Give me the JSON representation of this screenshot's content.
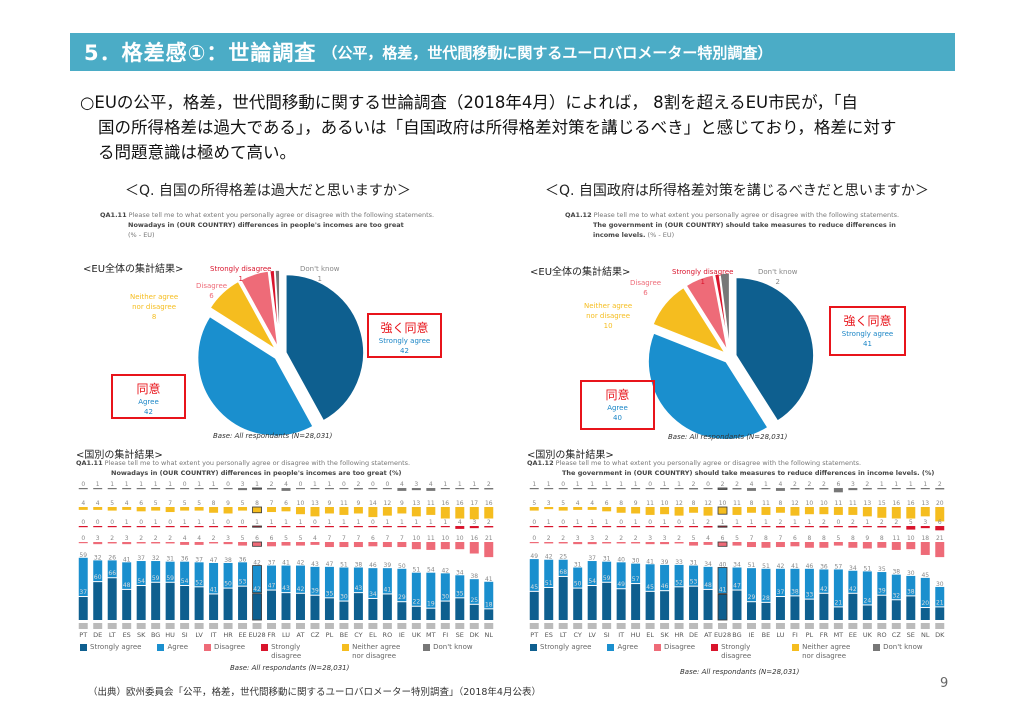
{
  "header": {
    "title": "5．格差感①：世論調査",
    "subtitle": "（公平，格差，世代間移動に関するユーロバロメーター特別調査）"
  },
  "lead": {
    "line1": "○EUの公平，格差，世代間移動に関する世論調査（2018年4月）によれば， 8割を超えるEU市民が，「自",
    "line2": "国の所得格差は過大である」，あるいは「自国政府は所得格差対策を講じるべき」と感じており，格差に対す",
    "line3": "る問題意識は極めて高い。"
  },
  "colors": {
    "strongly_agree": "#0e5f8f",
    "agree": "#1a8fce",
    "disagree": "#ee6b78",
    "strongly_disagree": "#d9142c",
    "neither": "#f5bd1f",
    "dont_know": "#777777"
  },
  "legend": [
    "Strongly agree",
    "Agree",
    "Disagree",
    "Strongly disagree",
    "Neither agree nor disagree",
    "Don't know"
  ],
  "left": {
    "question": "＜Q. 自国の所得格差は過大だと思いますか＞",
    "qa_code": "QA1.11",
    "qa_text": "Please tell me to what extent you personally agree or disagree with the following statements.",
    "qa_statement": "Nowadays in (OUR COUNTRY) differences in people's incomes are too great",
    "qa_unit": "(% - EU)",
    "eu_label": "<EU全体の集計結果>",
    "country_label": "<国別の集計結果>",
    "bar_statement": "Nowadays in (OUR COUNTRY) differences in people's incomes are too great (%)",
    "jp_strongly": "強く同意",
    "jp_agree": "同意",
    "base": "Base: All respondants (N=28,031)"
  },
  "right": {
    "question": "＜Q. 自国政府は所得格差対策を講じるべきだと思いますか＞",
    "qa_code": "QA1.12",
    "qa_text": "Please tell me to what extent you personally agree or disagree with the following statements.",
    "qa_statement": "The government in (OUR COUNTRY) should take measures to reduce differences in income levels.",
    "qa_unit": "(% - EU)",
    "eu_label": "<EU全体の集計結果>",
    "country_label": "<国別の集計結果>",
    "bar_statement": "The government in (OUR COUNTRY) should take measures to reduce differences in income levels. (%)",
    "jp_strongly": "強く同意",
    "jp_agree": "同意",
    "base": "Base: All respondants (N=28,031)"
  },
  "footer": "（出典）欧州委員会「公平，格差，世代間移動に関するユーロバロメーター特別調査」（2018年4月公表）",
  "page_number": "9",
  "chart_data": [
    {
      "type": "pie",
      "title": "QA1.11 EU total",
      "labels": [
        "Strongly agree",
        "Agree",
        "Neither agree nor disagree",
        "Disagree",
        "Strongly disagree",
        "Don't know"
      ],
      "values": [
        42,
        42,
        8,
        6,
        1,
        1
      ]
    },
    {
      "type": "pie",
      "title": "QA1.12 EU total",
      "labels": [
        "Strongly agree",
        "Agree",
        "Neither agree nor disagree",
        "Disagree",
        "Strongly disagree",
        "Don't know"
      ],
      "values": [
        41,
        40,
        10,
        6,
        1,
        2
      ]
    },
    {
      "type": "bar",
      "title": "QA1.11 by country",
      "categories": [
        "PT",
        "DE",
        "LT",
        "ES",
        "SK",
        "BG",
        "HU",
        "SI",
        "LV",
        "IT",
        "HR",
        "EE",
        "EU28",
        "FR",
        "LU",
        "AT",
        "CZ",
        "PL",
        "BE",
        "CY",
        "EL",
        "RO",
        "IE",
        "UK",
        "MT",
        "FI",
        "SE",
        "DK",
        "NL"
      ],
      "series": [
        {
          "name": "Strongly agree",
          "values": [
            37,
            60,
            66,
            48,
            54,
            59,
            59,
            54,
            52,
            41,
            50,
            53,
            42,
            47,
            43,
            42,
            39,
            35,
            30,
            43,
            34,
            41,
            29,
            22,
            19,
            30,
            35,
            25,
            18
          ]
        },
        {
          "name": "Agree",
          "values": [
            59,
            32,
            26,
            41,
            37,
            32,
            31,
            36,
            37,
            47,
            38,
            36,
            42,
            37,
            41,
            42,
            43,
            47,
            51,
            38,
            46,
            39,
            50,
            51,
            54,
            42,
            34,
            38,
            41
          ]
        },
        {
          "name": "Disagree",
          "values": [
            0,
            3,
            2,
            3,
            2,
            2,
            2,
            4,
            4,
            2,
            3,
            5,
            6,
            6,
            5,
            5,
            4,
            7,
            7,
            7,
            6,
            7,
            7,
            10,
            11,
            10,
            10,
            16,
            21
          ]
        },
        {
          "name": "Strongly disagree",
          "values": [
            0,
            0,
            0,
            1,
            0,
            1,
            0,
            1,
            1,
            1,
            0,
            0,
            1,
            1,
            1,
            1,
            0,
            1,
            1,
            1,
            0,
            1,
            1,
            1,
            1,
            1,
            4,
            3,
            2
          ]
        },
        {
          "name": "Neither agree nor disagree",
          "values": [
            4,
            4,
            5,
            4,
            6,
            5,
            7,
            5,
            5,
            8,
            9,
            5,
            8,
            7,
            6,
            10,
            13,
            9,
            11,
            9,
            14,
            12,
            9,
            13,
            11,
            16,
            16,
            17,
            16
          ]
        },
        {
          "name": "Don't know",
          "values": [
            0,
            1,
            1,
            1,
            1,
            1,
            1,
            0,
            1,
            1,
            0,
            3,
            1,
            2,
            4,
            0,
            1,
            1,
            0,
            2,
            0,
            0,
            4,
            3,
            4,
            1,
            1,
            1,
            2
          ]
        }
      ]
    },
    {
      "type": "bar",
      "title": "QA1.12 by country",
      "categories": [
        "PT",
        "ES",
        "LT",
        "CY",
        "LV",
        "SI",
        "IT",
        "HU",
        "EL",
        "SK",
        "HR",
        "DE",
        "AT",
        "EU28",
        "BG",
        "IE",
        "BE",
        "LU",
        "FI",
        "PL",
        "FR",
        "MT",
        "EE",
        "UK",
        "RO",
        "CZ",
        "SE",
        "NL",
        "DK"
      ],
      "series": [
        {
          "name": "Strongly agree",
          "values": [
            45,
            51,
            68,
            50,
            54,
            59,
            49,
            57,
            45,
            46,
            52,
            53,
            48,
            41,
            47,
            29,
            28,
            37,
            38,
            33,
            42,
            21,
            42,
            24,
            39,
            32,
            38,
            20,
            21
          ]
        },
        {
          "name": "Agree",
          "values": [
            49,
            42,
            25,
            31,
            37,
            31,
            40,
            30,
            41,
            39,
            33,
            31,
            34,
            40,
            34,
            51,
            51,
            42,
            41,
            46,
            36,
            57,
            34,
            51,
            35,
            38,
            30,
            45,
            30
          ]
        },
        {
          "name": "Disagree",
          "values": [
            0,
            2,
            2,
            3,
            3,
            2,
            2,
            2,
            3,
            3,
            2,
            5,
            4,
            6,
            5,
            7,
            8,
            7,
            6,
            8,
            8,
            5,
            8,
            9,
            8,
            11,
            10,
            18,
            21
          ]
        },
        {
          "name": "Strongly disagree",
          "values": [
            0,
            1,
            0,
            1,
            1,
            1,
            0,
            1,
            0,
            1,
            0,
            1,
            2,
            1,
            1,
            1,
            1,
            2,
            1,
            1,
            2,
            0,
            2,
            1,
            2,
            2,
            5,
            3,
            6
          ]
        },
        {
          "name": "Neither agree nor disagree",
          "values": [
            5,
            3,
            5,
            4,
            4,
            6,
            8,
            9,
            11,
            10,
            12,
            8,
            12,
            10,
            11,
            8,
            11,
            8,
            12,
            10,
            10,
            11,
            11,
            13,
            15,
            16,
            16,
            13,
            20
          ]
        },
        {
          "name": "Don't know",
          "values": [
            1,
            1,
            0,
            1,
            1,
            1,
            1,
            1,
            0,
            1,
            1,
            2,
            0,
            2,
            2,
            4,
            1,
            4,
            2,
            2,
            2,
            6,
            3,
            2,
            1,
            1,
            1,
            1,
            2
          ]
        }
      ]
    }
  ]
}
